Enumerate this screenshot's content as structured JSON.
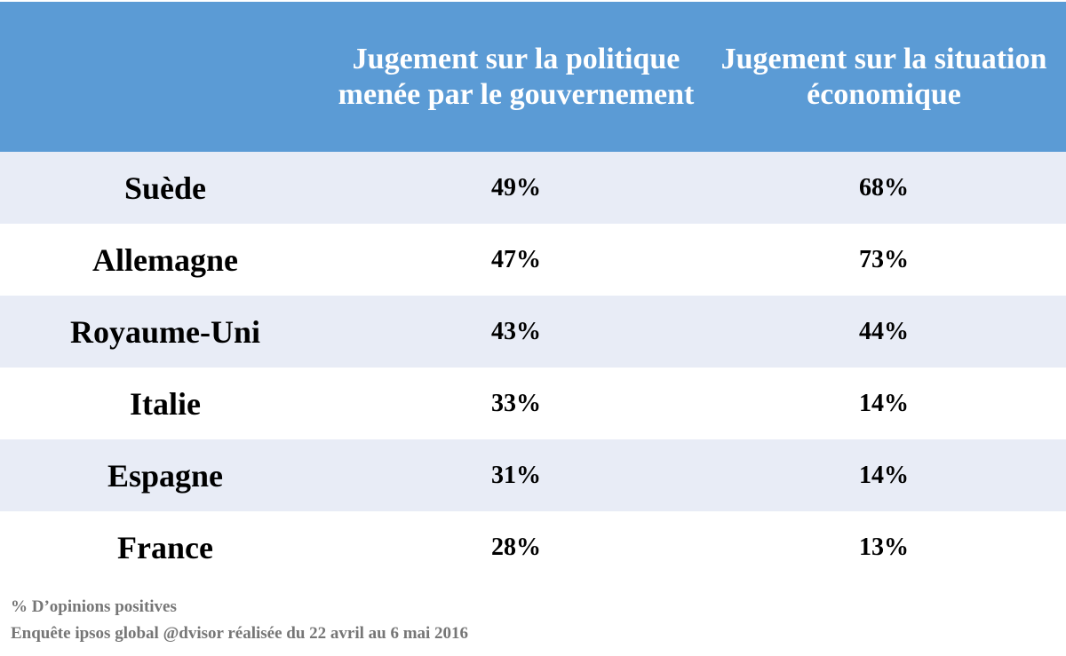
{
  "chart_data": {
    "type": "table",
    "columns": [
      "",
      "Jugement sur la politique menée par le gouvernement",
      "Jugement sur la situation économique"
    ],
    "rows": [
      {
        "country": "Suède",
        "politique": "49%",
        "economie": "68%"
      },
      {
        "country": "Allemagne",
        "politique": "47%",
        "economie": "73%"
      },
      {
        "country": "Royaume-Uni",
        "politique": "43%",
        "economie": "44%"
      },
      {
        "country": "Italie",
        "politique": "33%",
        "economie": "14%"
      },
      {
        "country": "Espagne",
        "politique": "31%",
        "economie": "14%"
      },
      {
        "country": "France",
        "politique": "28%",
        "economie": "13%"
      }
    ],
    "header_color": "#5b9bd5",
    "band_color": "#e8ecf6"
  },
  "footnotes": {
    "unit_note": "% D’opinions positives",
    "source": "Enquête ipsos global @dvisor réalisée du 22 avril au 6 mai 2016"
  }
}
